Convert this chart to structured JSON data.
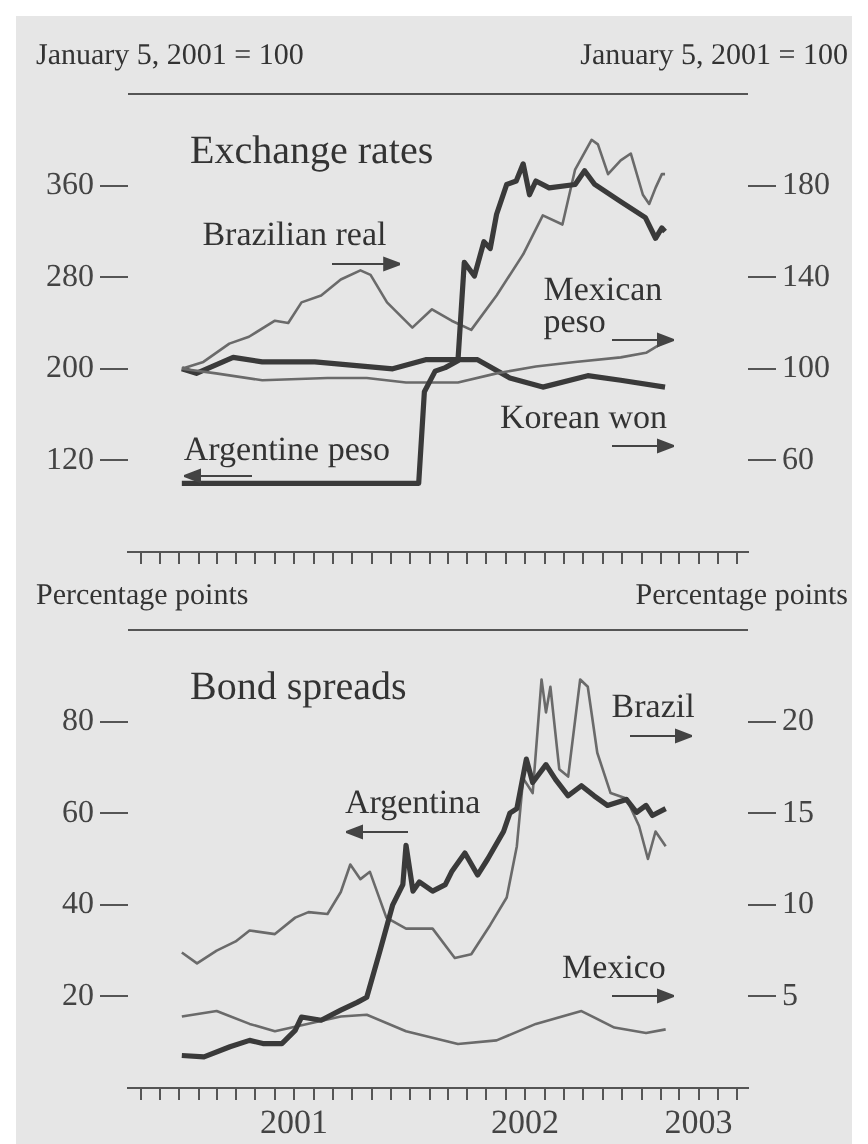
{
  "chart_data": [
    {
      "type": "line",
      "title": "Exchange rates",
      "ylabel": "January 5, 2001 = 100",
      "y2label": "January 5, 2001 = 100",
      "xlim": [
        "2000-10-12",
        "2003-06-18"
      ],
      "xticks": [
        {
          "value": "2000-11-01",
          "label": null
        },
        {
          "value": "2000-12-01",
          "label": null
        },
        {
          "value": "2001-01-01",
          "label": null
        },
        {
          "value": "2001-02-01",
          "label": null
        },
        {
          "value": "2001-03-01",
          "label": null
        },
        {
          "value": "2001-04-01",
          "label": null
        },
        {
          "value": "2001-05-01",
          "label": null
        },
        {
          "value": "2001-06-01",
          "label": null
        },
        {
          "value": "2001-07-01",
          "label": null
        },
        {
          "value": "2001-08-01",
          "label": null
        },
        {
          "value": "2001-09-01",
          "label": null
        },
        {
          "value": "2001-10-01",
          "label": null
        },
        {
          "value": "2001-11-01",
          "label": null
        },
        {
          "value": "2001-12-01",
          "label": null
        },
        {
          "value": "2002-01-01",
          "label": null
        },
        {
          "value": "2002-02-01",
          "label": null
        },
        {
          "value": "2002-03-01",
          "label": null
        },
        {
          "value": "2002-04-01",
          "label": null
        },
        {
          "value": "2002-05-01",
          "label": null
        },
        {
          "value": "2002-06-01",
          "label": null
        },
        {
          "value": "2002-07-01",
          "label": null
        },
        {
          "value": "2002-08-01",
          "label": null
        },
        {
          "value": "2002-09-01",
          "label": null
        },
        {
          "value": "2002-10-01",
          "label": null
        },
        {
          "value": "2002-11-01",
          "label": null
        },
        {
          "value": "2002-12-01",
          "label": null
        },
        {
          "value": "2003-01-01",
          "label": null
        },
        {
          "value": "2003-02-01",
          "label": null
        },
        {
          "value": "2003-03-01",
          "label": null
        },
        {
          "value": "2003-04-01",
          "label": null
        },
        {
          "value": "2003-05-01",
          "label": null
        },
        {
          "value": "2003-06-01",
          "label": null
        }
      ],
      "ylim": [
        40,
        440
      ],
      "yticks": [
        120,
        200,
        280,
        360
      ],
      "y2lim": [
        20,
        220
      ],
      "y2ticks": [
        60,
        100,
        140,
        180
      ],
      "tick_labels": "y",
      "grid": false,
      "legend": false,
      "series": [
        {
          "name": "Argentine peso",
          "color": "#3a3a3a",
          "x": [
            "2001-01-05",
            "2002-01-04",
            "2002-01-14",
            "2002-01-23",
            "2002-02-09",
            "2002-02-25",
            "2002-03-17",
            "2002-03-27",
            "2002-04-12",
            "2002-04-27",
            "2002-05-07",
            "2002-05-17",
            "2002-06-02",
            "2002-06-17",
            "2002-06-28",
            "2002-07-08",
            "2002-07-18",
            "2002-08-08",
            "2002-09-18",
            "2002-10-03",
            "2002-10-19",
            "2002-11-29",
            "2003-01-07",
            "2003-01-23",
            "2003-02-02",
            "2003-02-07"
          ],
          "values": [
            100,
            100,
            100,
            180,
            198,
            201,
            207,
            293,
            281,
            311,
            305,
            335,
            361,
            364,
            379,
            352,
            364,
            358,
            361,
            373,
            361,
            346,
            332,
            314,
            323,
            320
          ]
        },
        {
          "name": "Brazilian real",
          "color": "#6a6a6a",
          "axis": "y2",
          "x": [
            "2001-01-05",
            "2001-02-08",
            "2001-03-21",
            "2001-04-21",
            "2001-06-01",
            "2001-06-22",
            "2001-07-13",
            "2001-08-13",
            "2001-09-13",
            "2001-10-14",
            "2001-10-30",
            "2001-11-25",
            "2002-01-04",
            "2002-02-04",
            "2002-03-07",
            "2002-04-07",
            "2002-05-17",
            "2002-06-28",
            "2002-07-29",
            "2002-08-29",
            "2002-09-18",
            "2002-10-14",
            "2002-10-24",
            "2002-11-09",
            "2002-11-29",
            "2002-12-15",
            "2003-01-03",
            "2003-01-13",
            "2003-01-23",
            "2003-02-02",
            "2003-02-07"
          ],
          "values": [
            100,
            103,
            111,
            114,
            121,
            120,
            129,
            132,
            139,
            143,
            141,
            129,
            118,
            126,
            121,
            117,
            132,
            150,
            167,
            163,
            187,
            200,
            198,
            185,
            191,
            194,
            176,
            172,
            179,
            185,
            185
          ]
        },
        {
          "name": "Mexican peso",
          "color": "#6a6a6a",
          "axis": "y2",
          "x": [
            "2001-01-05",
            "2001-02-28",
            "2001-05-12",
            "2001-08-23",
            "2001-10-24",
            "2001-12-25",
            "2002-03-17",
            "2002-05-17",
            "2002-07-18",
            "2002-09-18",
            "2002-11-29",
            "2003-01-08",
            "2003-02-07"
          ],
          "values": [
            100,
            98,
            95,
            96,
            96,
            94,
            94,
            98,
            101,
            103,
            105,
            107,
            112
          ]
        },
        {
          "name": "Korean won",
          "color": "#3a3a3a",
          "axis": "y2",
          "x": [
            "2001-01-05",
            "2001-01-28",
            "2001-03-27",
            "2001-05-12",
            "2001-08-03",
            "2001-12-04",
            "2002-01-25",
            "2002-04-17",
            "2002-06-07",
            "2002-07-29",
            "2002-10-08",
            "2002-11-29",
            "2003-02-07"
          ],
          "values": [
            100,
            98,
            105,
            103,
            103,
            100,
            104,
            104,
            96,
            92,
            97,
            95,
            92
          ]
        }
      ]
    },
    {
      "type": "line",
      "title": "Bond spreads",
      "ylabel": "Percentage points",
      "y2label": "Percentage points",
      "xlim": [
        "2000-10-12",
        "2003-06-18"
      ],
      "xticks": [
        {
          "value": "2000-11-01",
          "label": null
        },
        {
          "value": "2000-12-01",
          "label": null
        },
        {
          "value": "2001-01-01",
          "label": null
        },
        {
          "value": "2001-02-01",
          "label": null
        },
        {
          "value": "2001-03-01",
          "label": null
        },
        {
          "value": "2001-04-01",
          "label": null
        },
        {
          "value": "2001-05-01",
          "label": null
        },
        {
          "value": "2001-06-01",
          "label": null
        },
        {
          "value": "2001-07-01",
          "label": "2001"
        },
        {
          "value": "2001-08-01",
          "label": null
        },
        {
          "value": "2001-09-01",
          "label": null
        },
        {
          "value": "2001-10-01",
          "label": null
        },
        {
          "value": "2001-11-01",
          "label": null
        },
        {
          "value": "2001-12-01",
          "label": null
        },
        {
          "value": "2002-01-01",
          "label": null
        },
        {
          "value": "2002-02-01",
          "label": null
        },
        {
          "value": "2002-03-01",
          "label": null
        },
        {
          "value": "2002-04-01",
          "label": null
        },
        {
          "value": "2002-05-01",
          "label": null
        },
        {
          "value": "2002-06-01",
          "label": null
        },
        {
          "value": "2002-07-01",
          "label": "2002"
        },
        {
          "value": "2002-08-01",
          "label": null
        },
        {
          "value": "2002-09-01",
          "label": null
        },
        {
          "value": "2002-10-01",
          "label": null
        },
        {
          "value": "2002-11-01",
          "label": null
        },
        {
          "value": "2002-12-01",
          "label": null
        },
        {
          "value": "2003-01-01",
          "label": null
        },
        {
          "value": "2003-02-01",
          "label": null
        },
        {
          "value": "2003-03-01",
          "label": null
        },
        {
          "value": "2003-04-01",
          "label": "2003"
        },
        {
          "value": "2003-05-01",
          "label": null
        },
        {
          "value": "2003-06-01",
          "label": null
        }
      ],
      "ylim": [
        0,
        100
      ],
      "yticks": [
        20,
        40,
        60,
        80
      ],
      "y2lim": [
        0,
        25
      ],
      "y2ticks": [
        5,
        10,
        15,
        20
      ],
      "grid": false,
      "legend": false,
      "series": [
        {
          "name": "Argentina",
          "color": "#3a3a3a",
          "x": [
            "2001-01-05",
            "2001-02-09",
            "2001-03-22",
            "2001-04-22",
            "2001-05-13",
            "2001-06-12",
            "2001-07-03",
            "2001-07-13",
            "2001-08-13",
            "2001-09-13",
            "2001-10-09",
            "2001-10-24",
            "2001-11-14",
            "2001-12-04",
            "2001-12-20",
            "2001-12-25",
            "2002-01-05",
            "2002-01-15",
            "2002-02-05",
            "2002-02-25",
            "2002-03-07",
            "2002-03-28",
            "2002-04-17",
            "2002-05-03",
            "2002-05-28",
            "2002-06-07",
            "2002-06-18",
            "2002-07-03",
            "2002-07-13",
            "2002-08-03",
            "2002-08-18",
            "2002-09-07",
            "2002-09-28",
            "2002-10-18",
            "2002-11-08",
            "2002-12-08",
            "2002-12-24",
            "2003-01-08",
            "2003-01-18",
            "2003-02-08"
          ],
          "values": [
            7.1,
            6.8,
            9,
            10.4,
            9.7,
            9.7,
            12.6,
            15.5,
            14.8,
            17,
            18.7,
            19.8,
            30,
            40,
            44.4,
            53,
            43,
            45,
            43,
            44.4,
            47.2,
            51.3,
            46.5,
            50,
            56,
            60,
            61,
            71.8,
            66.7,
            70.6,
            67.4,
            63.8,
            66,
            63.8,
            61.7,
            63,
            60.2,
            61.7,
            59.5,
            61
          ]
        },
        {
          "name": "Brazil",
          "color": "#6a6a6a",
          "axis": "y2",
          "x": [
            "2001-01-05",
            "2001-01-29",
            "2001-03-01",
            "2001-03-31",
            "2001-04-22",
            "2001-06-01",
            "2001-07-03",
            "2001-07-24",
            "2001-08-23",
            "2001-09-13",
            "2001-09-28",
            "2001-10-14",
            "2001-10-29",
            "2001-11-24",
            "2001-12-25",
            "2002-02-05",
            "2002-03-12",
            "2002-04-07",
            "2002-05-07",
            "2002-06-02",
            "2002-06-18",
            "2002-06-28",
            "2002-07-13",
            "2002-07-27",
            "2002-08-03",
            "2002-08-10",
            "2002-08-24",
            "2002-09-07",
            "2002-09-26",
            "2002-10-08",
            "2002-10-23",
            "2002-11-13",
            "2002-12-08",
            "2002-12-28",
            "2003-01-11",
            "2003-01-23",
            "2003-02-08"
          ],
          "values": [
            7.4,
            6.8,
            7.5,
            8,
            8.6,
            8.4,
            9.3,
            9.6,
            9.5,
            10.7,
            12.2,
            11.4,
            11.8,
            9.3,
            8.7,
            8.7,
            7.1,
            7.3,
            8.9,
            10.4,
            13.2,
            16.9,
            16.1,
            22.3,
            20.5,
            21.9,
            17.4,
            17,
            22.3,
            21.9,
            18.3,
            16.1,
            15.8,
            14.3,
            12.5,
            14,
            13.2
          ]
        },
        {
          "name": "Mexico",
          "color": "#6a6a6a",
          "axis": "y2",
          "x": [
            "2001-01-05",
            "2001-03-01",
            "2001-04-22",
            "2001-06-01",
            "2001-09-13",
            "2001-10-24",
            "2001-12-25",
            "2002-03-17",
            "2002-05-17",
            "2002-07-18",
            "2002-09-28",
            "2002-11-19",
            "2003-01-08",
            "2003-02-08"
          ],
          "values": [
            3.9,
            4.2,
            3.5,
            3.1,
            3.9,
            4,
            3.1,
            2.4,
            2.6,
            3.5,
            4.2,
            3.3,
            3,
            3.2
          ]
        }
      ]
    }
  ]
}
